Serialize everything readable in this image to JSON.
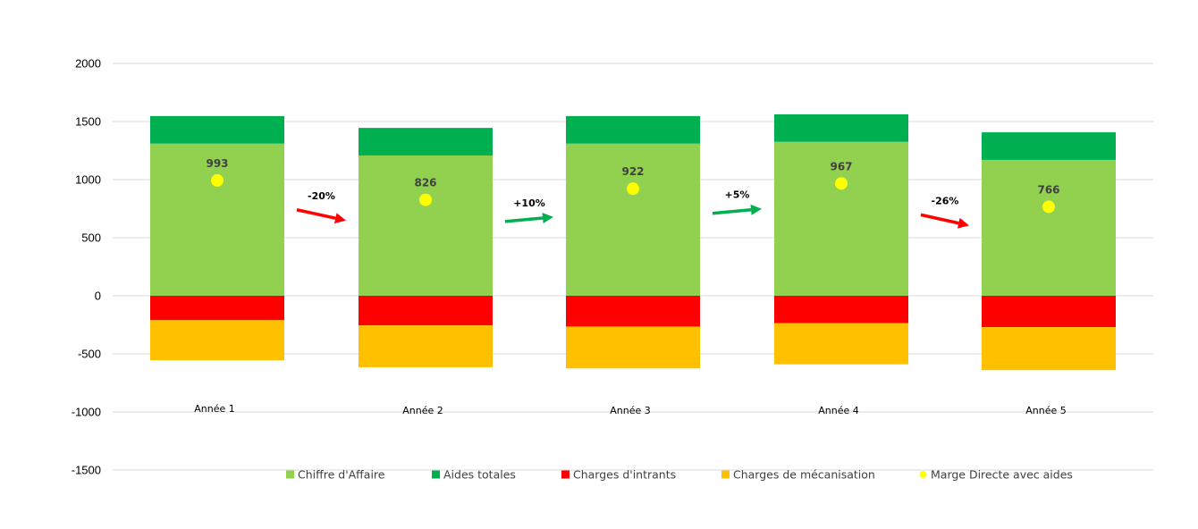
{
  "chart_data": {
    "type": "bar",
    "stacked": true,
    "categories": [
      "Année 1",
      "Année 2",
      "Année 3",
      "Année 4",
      "Année 5"
    ],
    "ylim": [
      -1500,
      2000
    ],
    "yticks": [
      2000,
      1500,
      1000,
      500,
      0,
      -500,
      -1000,
      -1500
    ],
    "grid": true,
    "legend_position": "bottom",
    "series": [
      {
        "name": "Chiffre d'Affaire",
        "kind": "bar",
        "stack": "positive",
        "color": "#92D050",
        "values": [
          1310,
          1208,
          1310,
          1325,
          1170
        ]
      },
      {
        "name": "Aides totales",
        "kind": "bar",
        "stack": "positive",
        "color": "#00B050",
        "values": [
          237,
          237,
          237,
          237,
          237
        ]
      },
      {
        "name": "Charges d'intrants",
        "kind": "bar",
        "stack": "negative",
        "color": "#FF0000",
        "values": [
          -210,
          -255,
          -265,
          -235,
          -270
        ]
      },
      {
        "name": "Charges de mécanisation",
        "kind": "bar",
        "stack": "negative",
        "color": "#FFC000",
        "values": [
          -345,
          -360,
          -360,
          -355,
          -370
        ]
      },
      {
        "name": "Marge Directe avec aides",
        "kind": "point",
        "color": "#FFFF00",
        "values": [
          993,
          826,
          922,
          967,
          766
        ],
        "labels": [
          "993",
          "826",
          "922",
          "967",
          "766"
        ]
      }
    ],
    "annotations": [
      {
        "text": "-20%",
        "between": [
          0,
          1
        ],
        "direction": "down",
        "color": "#FF0000"
      },
      {
        "text": "+10%",
        "between": [
          1,
          2
        ],
        "direction": "up",
        "color": "#00B050"
      },
      {
        "text": "+5%",
        "between": [
          2,
          3
        ],
        "direction": "up",
        "color": "#00B050"
      },
      {
        "text": "-26%",
        "between": [
          3,
          4
        ],
        "direction": "down",
        "color": "#FF0000"
      }
    ]
  }
}
